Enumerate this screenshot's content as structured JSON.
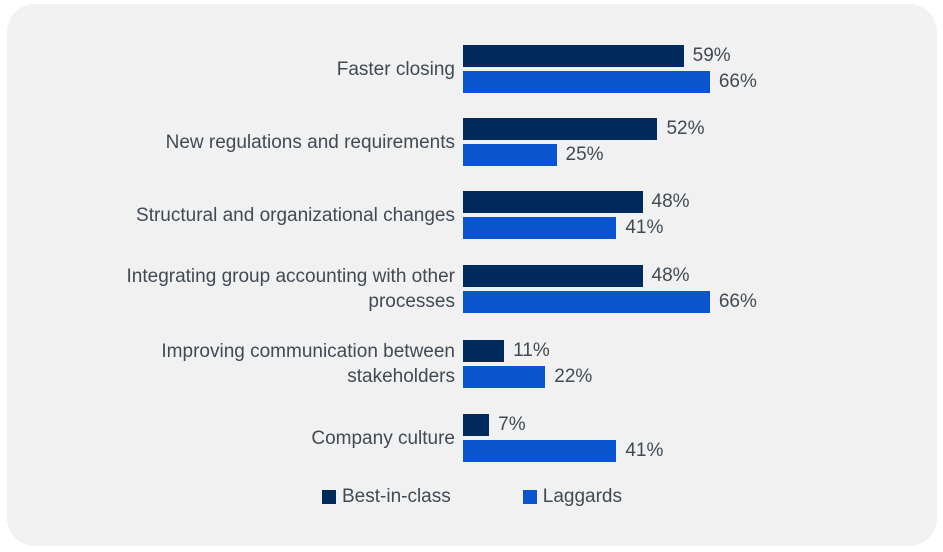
{
  "colors": {
    "card_background": "#f1f1f1",
    "text": "#404a54",
    "best_in_class": "#002a5c",
    "laggards": "#0b54cf"
  },
  "chart_data": {
    "type": "bar",
    "orientation": "horizontal",
    "title": "",
    "xlabel": "",
    "ylabel": "",
    "xlim": [
      0,
      100
    ],
    "value_suffix": "%",
    "grid": false,
    "legend_position": "bottom",
    "categories": [
      "Faster closing",
      "New regulations and requirements",
      "Structural and organizational changes",
      "Integrating group accounting with other\nprocesses",
      "Improving communication between\nstakeholders",
      "Company culture"
    ],
    "series": [
      {
        "name": "Best-in-class",
        "color": "#002a5c",
        "values": [
          59,
          52,
          48,
          48,
          11,
          7
        ]
      },
      {
        "name": "Laggards",
        "color": "#0b54cf",
        "values": [
          66,
          25,
          41,
          66,
          22,
          41
        ]
      }
    ]
  },
  "legend": {
    "items": [
      {
        "label": "Best-in-class",
        "color": "#002a5c"
      },
      {
        "label": "Laggards",
        "color": "#0b54cf"
      }
    ]
  }
}
